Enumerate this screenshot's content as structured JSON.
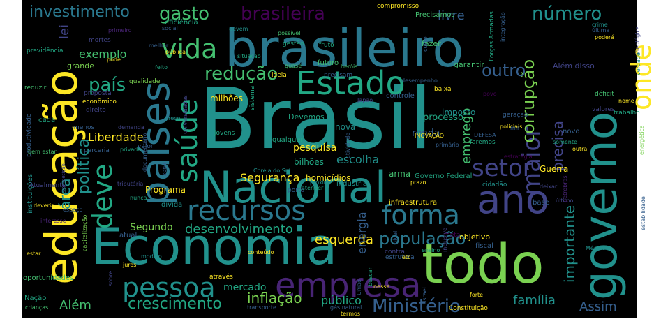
{
  "palette": {
    "background": "#ffffff",
    "canvas": "#000000",
    "yellow": "#fde725",
    "lightgreen": "#7ad151",
    "green": "#44bf70",
    "teal": "#22a884",
    "tealblue": "#21918c",
    "blue": "#2a788e",
    "slate": "#355f8d",
    "indigo": "#414487",
    "purple": "#482475",
    "darkpurple": "#440154"
  },
  "words": [
    "Brasil",
    "Economia",
    "brasileiro",
    "todo",
    "Nacional",
    "educação",
    "governo",
    "países",
    "Estado",
    "ano",
    "empresa",
    "recursos",
    "forma",
    "saúde",
    "vida",
    "setor",
    "deve",
    "pessoa",
    "maior",
    "onde",
    "redução",
    "país",
    "brasileira",
    "investimento",
    "gasto",
    "número",
    "livre",
    "população",
    "corrupção",
    "outro",
    "política",
    "crescimento",
    "inflação",
    "Ministério",
    "Além",
    "Segurança",
    "desenvolvimento",
    "esquerda",
    "família",
    "Assim",
    "área",
    "emprego",
    "exemplo",
    "precisa",
    "importante",
    "lei",
    "Liberdade",
    "mercado",
    "escolha",
    "energia",
    "Segundo",
    "pesquisa",
    "público",
    "homicídios",
    "nova",
    "renda",
    "processo",
    "imposto",
    "bilhões",
    "Guerra",
    "Programa",
    "milhões",
    "Precisamos",
    "compromisso",
    "Forças Armadas",
    "Além disso",
    "garantir",
    "fazer",
    "futuro",
    "precisam",
    "gestão",
    "fruto",
    "possível",
    "eficiência",
    "social",
    "devem",
    "mortes",
    "primeiro",
    "previdência",
    "grande",
    "pública",
    "melhor",
    "situação",
    "pode",
    "feito",
    "heróis",
    "custo",
    "integração",
    "crime",
    "última",
    "poderá",
    "ideológica",
    "verdade",
    "reduzir",
    "qualidade",
    "proposta",
    "econômico",
    "direito",
    "cada",
    "menos",
    "demanda",
    "preço",
    "jovens",
    "qualquer",
    "Devemos",
    "Japão",
    "controle",
    "baixa",
    "desempenho",
    "povo",
    "geração",
    "policiais",
    "valores",
    "trabalho",
    "nome",
    "déficit",
    "energética",
    "sistema",
    "ideia",
    "quase",
    "atividade",
    "produtividade",
    "bem estar",
    "parceria",
    "privada",
    "valor",
    "documentário",
    "zona",
    "Coréia do Sul",
    "porto",
    "indústria",
    "arma",
    "Governo Federal",
    "estratégia",
    "INOVAÇÃO",
    "primário",
    "faremos",
    "DEFESA",
    "novo",
    "mil",
    "somente",
    "outra",
    "instituições",
    "Atualmente",
    "competição",
    "tributária",
    "nunca",
    "dívida",
    "próximo",
    "atender",
    "prazo",
    "cidadão",
    "deixar",
    "petrobras",
    "último",
    "estabilidade",
    "deveria",
    "espaço",
    "interesse",
    "capitalização",
    "universidades",
    "base",
    "infraestrutura",
    "objetivo",
    "fiscal",
    "Médico",
    "estar",
    "modelo",
    "juros",
    "atual",
    "conteúdo",
    "contra",
    "meta",
    "estrutura",
    "nível",
    "ensino",
    "inclusive",
    "etc",
    "oportunidades",
    "Nação",
    "crianças",
    "sobre",
    "através",
    "transporte",
    "gás natural",
    "termos",
    "União",
    "buscar",
    "nesse",
    "Israel",
    "forte",
    "Constituição",
    "caso",
    "sempre",
    "prioridade",
    "ainda"
  ]
}
